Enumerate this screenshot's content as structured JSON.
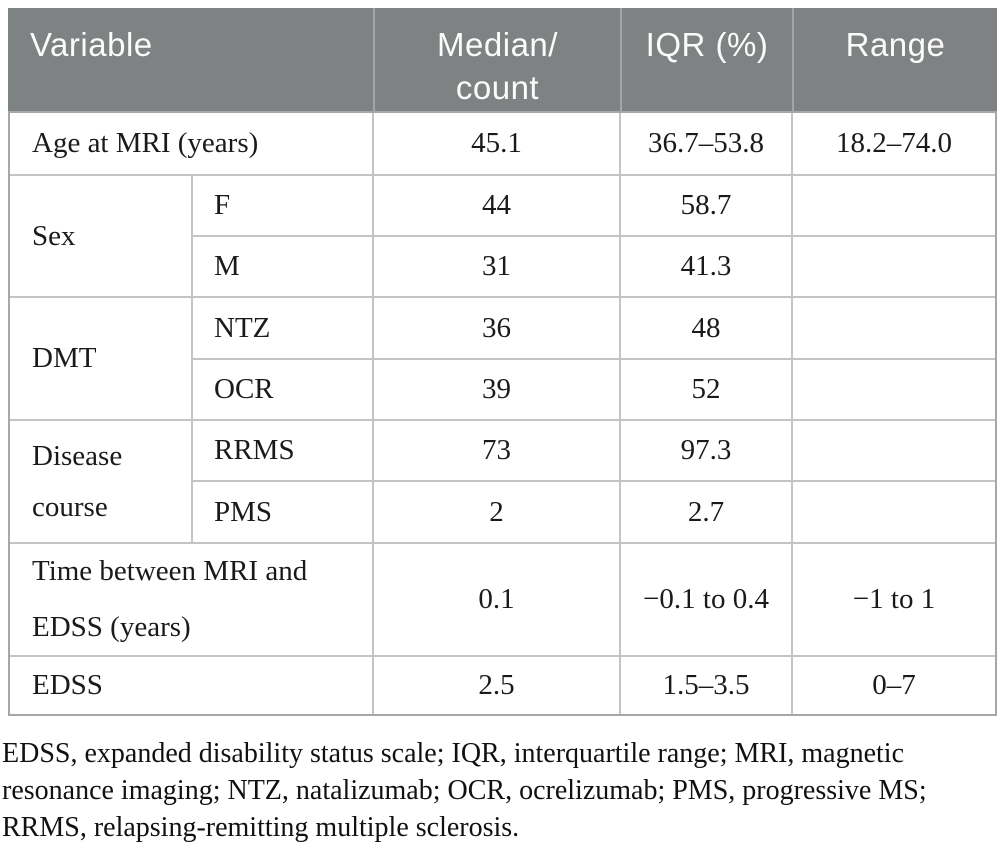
{
  "table": {
    "header": {
      "variable": "Variable",
      "median_count": "Median/\ncount",
      "iqr": "IQR (%)",
      "range": "Range"
    },
    "rows": [
      {
        "variable": "Age at MRI (years)",
        "median": "45.1",
        "iqr": "36.7–53.8",
        "range": "18.2–74.0"
      },
      {
        "group": "Sex",
        "sub": "F",
        "median": "44",
        "iqr": "58.7",
        "range": ""
      },
      {
        "sub": "M",
        "median": "31",
        "iqr": "41.3",
        "range": ""
      },
      {
        "group": "DMT",
        "sub": "NTZ",
        "median": "36",
        "iqr": "48",
        "range": ""
      },
      {
        "sub": "OCR",
        "median": "39",
        "iqr": "52",
        "range": ""
      },
      {
        "group": "Disease course",
        "sub": "RRMS",
        "median": "73",
        "iqr": "97.3",
        "range": ""
      },
      {
        "sub": "PMS",
        "median": "2",
        "iqr": "2.7",
        "range": ""
      },
      {
        "variable": "Time between MRI and EDSS (years)",
        "median": "0.1",
        "iqr": "−0.1 to 0.4",
        "range": "−1 to 1"
      },
      {
        "variable": "EDSS",
        "median": "2.5",
        "iqr": "1.5–3.5",
        "range": "0–7"
      }
    ],
    "footnote": "EDSS, expanded disability status scale; IQR, interquartile range; MRI, magnetic resonance imaging; NTZ, natalizumab; OCR, ocrelizumab; PMS, progressive MS; RRMS, relapsing-remitting multiple sclerosis."
  },
  "colors": {
    "header_bg": "#7f8283",
    "header_text": "#fbfbfb",
    "grid_line": "#c3c4c5",
    "outer_border": "#a5a7a9",
    "body_text": "#1a1a1a"
  }
}
